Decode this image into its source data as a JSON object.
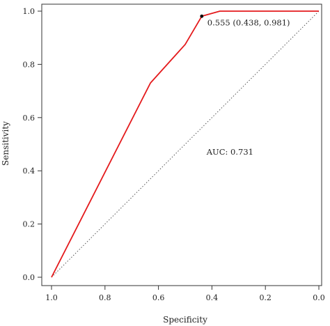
{
  "chart_data": {
    "type": "line",
    "xlabel": "Specificity",
    "ylabel": "Sensitivity",
    "xlim": [
      1.0,
      0.0
    ],
    "ylim": [
      0.0,
      1.0
    ],
    "x_reversed": true,
    "grid": false,
    "legend": "none",
    "x_ticks": [
      1.0,
      0.8,
      0.6,
      0.4,
      0.2,
      0.0
    ],
    "x_tick_labels": [
      "1.0",
      "0.8",
      "0.6",
      "0.4",
      "0.2",
      "0.0"
    ],
    "y_ticks": [
      0.0,
      0.2,
      0.4,
      0.6,
      0.8,
      1.0
    ],
    "y_tick_labels": [
      "0.0",
      "0.2",
      "0.4",
      "0.6",
      "0.8",
      "1.0"
    ],
    "series": [
      {
        "color": "#e41a1c",
        "x": [
          1.0,
          0.63,
          0.5,
          0.438,
          0.37,
          0.0
        ],
        "y": [
          0.0,
          0.73,
          0.875,
          0.981,
          1.0,
          1.0
        ]
      }
    ],
    "reference_line": {
      "from": [
        1.0,
        0.0
      ],
      "to": [
        0.0,
        1.0
      ],
      "style": "dotted",
      "color": "#555555"
    },
    "best_threshold": {
      "x": 0.438,
      "y": 0.981,
      "label": "0.555 (0.438, 0.981)"
    },
    "auc_label": "AUC: 0.731"
  }
}
